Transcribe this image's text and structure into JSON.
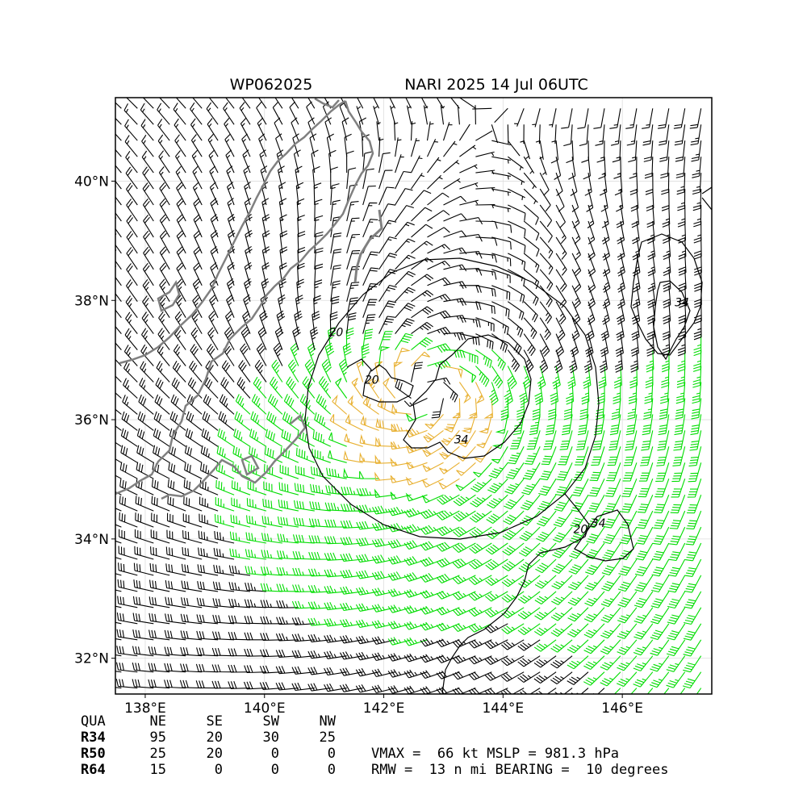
{
  "header": {
    "storm_id": "WP062025",
    "storm_title": "NARI 2025 14 Jul 06UTC"
  },
  "chart_data": {
    "type": "wind_barb_map",
    "lon_range": [
      137.5,
      147.5
    ],
    "lat_range": [
      31.4,
      41.4
    ],
    "x_ticks": [
      {
        "value": 138,
        "label": "138°E"
      },
      {
        "value": 140,
        "label": "140°E"
      },
      {
        "value": 142,
        "label": "142°E"
      },
      {
        "value": 144,
        "label": "144°E"
      },
      {
        "value": 146,
        "label": "146°E"
      }
    ],
    "y_ticks": [
      {
        "value": 32,
        "label": "32°N"
      },
      {
        "value": 34,
        "label": "34°N"
      },
      {
        "value": 36,
        "label": "36°N"
      },
      {
        "value": 38,
        "label": "38°N"
      },
      {
        "value": 40,
        "label": "40°N"
      }
    ],
    "grid": true,
    "contour_levels": [
      20,
      34
    ],
    "contour_labels": [
      {
        "lon": 141.2,
        "lat": 37.4,
        "text": "20"
      },
      {
        "lon": 141.8,
        "lat": 36.6,
        "text": "20"
      },
      {
        "lon": 143.3,
        "lat": 35.6,
        "text": "34"
      },
      {
        "lon": 147.0,
        "lat": 37.9,
        "text": "34"
      },
      {
        "lon": 145.3,
        "lat": 34.1,
        "text": "20"
      },
      {
        "lon": 145.6,
        "lat": 34.2,
        "text": "34"
      }
    ],
    "center": {
      "lon": 142.7,
      "lat": 36.4
    },
    "barb_colors": {
      "below_34": "#000000",
      "gale": "#00dd00",
      "storm": "#e8b030",
      "coast": "#808080"
    }
  },
  "table": {
    "headers": [
      "QUA",
      "NE",
      "SE",
      "SW",
      "NW"
    ],
    "rows": [
      [
        "R34",
        "95",
        "20",
        "30",
        "25"
      ],
      [
        "R50",
        "25",
        "20",
        "0",
        "0"
      ],
      [
        "R64",
        "15",
        "0",
        "0",
        "0"
      ]
    ]
  },
  "summary": {
    "line1": "VMAX =  66 kt MSLP = 981.3 hPa",
    "line2": "RMW =  13 n mi BEARING =  10 degrees"
  }
}
